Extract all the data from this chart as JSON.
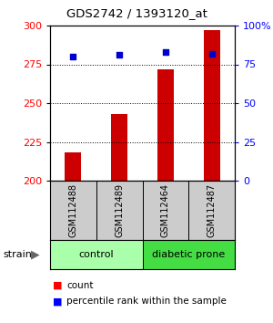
{
  "title": "GDS2742 / 1393120_at",
  "samples": [
    "GSM112488",
    "GSM112489",
    "GSM112464",
    "GSM112487"
  ],
  "counts": [
    218,
    243,
    272,
    297
  ],
  "percentiles": [
    80,
    81,
    83,
    82
  ],
  "ylim_left": [
    200,
    300
  ],
  "ylim_right": [
    0,
    100
  ],
  "yticks_left": [
    200,
    225,
    250,
    275,
    300
  ],
  "yticks_right": [
    0,
    25,
    50,
    75,
    100
  ],
  "ytick_labels_right": [
    "0",
    "25",
    "50",
    "75",
    "100%"
  ],
  "bar_color": "#cc0000",
  "dot_color": "#0000cc",
  "groups": [
    {
      "label": "control",
      "color": "#aaffaa"
    },
    {
      "label": "diabetic prone",
      "color": "#44dd44"
    }
  ],
  "strain_label": "strain",
  "legend_count_label": "count",
  "legend_pct_label": "percentile rank within the sample",
  "sample_box_color": "#cccccc",
  "bg_color": "#ffffff",
  "bar_width": 0.35
}
